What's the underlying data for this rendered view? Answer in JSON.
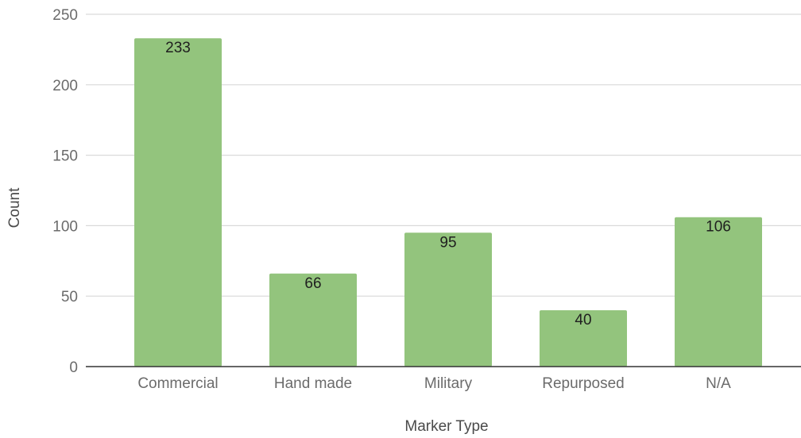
{
  "chart_data": {
    "type": "bar",
    "categories": [
      "Commercial",
      "Hand made",
      "Military",
      "Repurposed",
      "N/A"
    ],
    "series": [
      {
        "values": [
          233,
          66,
          95,
          40,
          106
        ]
      }
    ],
    "title": "",
    "xlabel": "Marker Type",
    "ylabel": "Count",
    "ylim": [
      0,
      250
    ],
    "yticks": [
      0,
      50,
      100,
      150,
      200,
      250
    ],
    "grid": true,
    "legend": "none",
    "colors": {
      "bar": "#93c47d",
      "grid": "#d9d9d9",
      "baseline": "#333333"
    }
  }
}
